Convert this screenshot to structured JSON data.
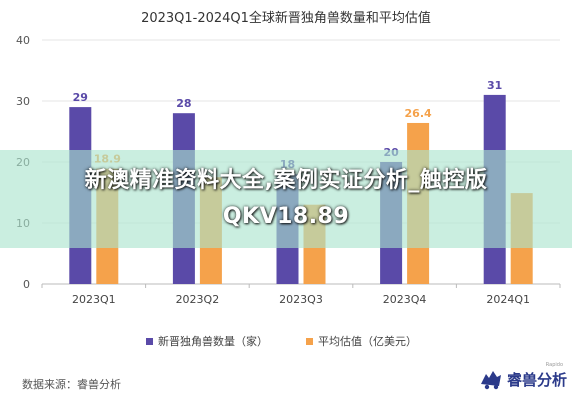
{
  "chart_data": {
    "type": "bar",
    "title": "2023Q1-2024Q1全球新晋独角兽数量和平均估值",
    "categories": [
      "2023Q1",
      "2023Q2",
      "2023Q3",
      "2023Q4",
      "2024Q1"
    ],
    "ylim": [
      0,
      40
    ],
    "yticks": [
      0,
      10,
      20,
      30,
      40
    ],
    "grid": true,
    "legend_position": "bottom",
    "series": [
      {
        "name": "新晋独角兽数量（家）",
        "values": [
          29,
          28,
          18,
          20,
          31
        ],
        "color": "#5a4aa8"
      },
      {
        "name": "平均估值（亿美元）",
        "values": [
          18.9,
          17.5,
          13.0,
          26.4,
          14.9
        ],
        "color": "#f5a24b",
        "labeled": [
          true,
          false,
          false,
          true,
          false
        ]
      }
    ]
  },
  "overlay": {
    "text": "新澳精准资料大全,案例实证分析_触控版QKV18.89",
    "color": "#aae4cd"
  },
  "footer": {
    "source": "数据来源：睿兽分析",
    "brand": "睿兽分析",
    "brand_tag": "Rapido",
    "brand_color": "#2b3a8a"
  }
}
